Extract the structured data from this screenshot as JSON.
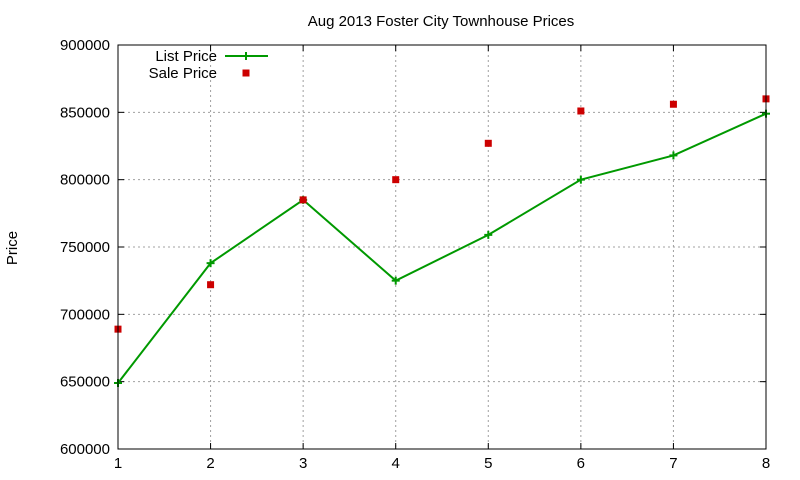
{
  "chart_data": {
    "type": "line",
    "title": "Aug 2013 Foster City Townhouse Prices",
    "ylabel": "Price",
    "xlabel": "",
    "x": [
      1,
      2,
      3,
      4,
      5,
      6,
      7,
      8
    ],
    "xlim": [
      1,
      8
    ],
    "ylim": [
      600000,
      900000
    ],
    "xticks": [
      "1",
      "2",
      "3",
      "4",
      "5",
      "6",
      "7",
      "8"
    ],
    "yticks": [
      "600000",
      "650000",
      "700000",
      "750000",
      "800000",
      "850000",
      "900000"
    ],
    "ytick_values": [
      600000,
      650000,
      700000,
      750000,
      800000,
      850000,
      900000
    ],
    "grid": true,
    "legend_position": "top-left",
    "series": [
      {
        "name": "List Price",
        "style": "line-with-plus-markers",
        "color": "#009900",
        "values": [
          649000,
          738000,
          785000,
          725000,
          759000,
          800000,
          818000,
          849000
        ]
      },
      {
        "name": "Sale Price",
        "style": "square-markers",
        "color": "#cc0000",
        "values": [
          689000,
          722000,
          785000,
          800000,
          827000,
          851000,
          856000,
          860000
        ]
      }
    ]
  }
}
